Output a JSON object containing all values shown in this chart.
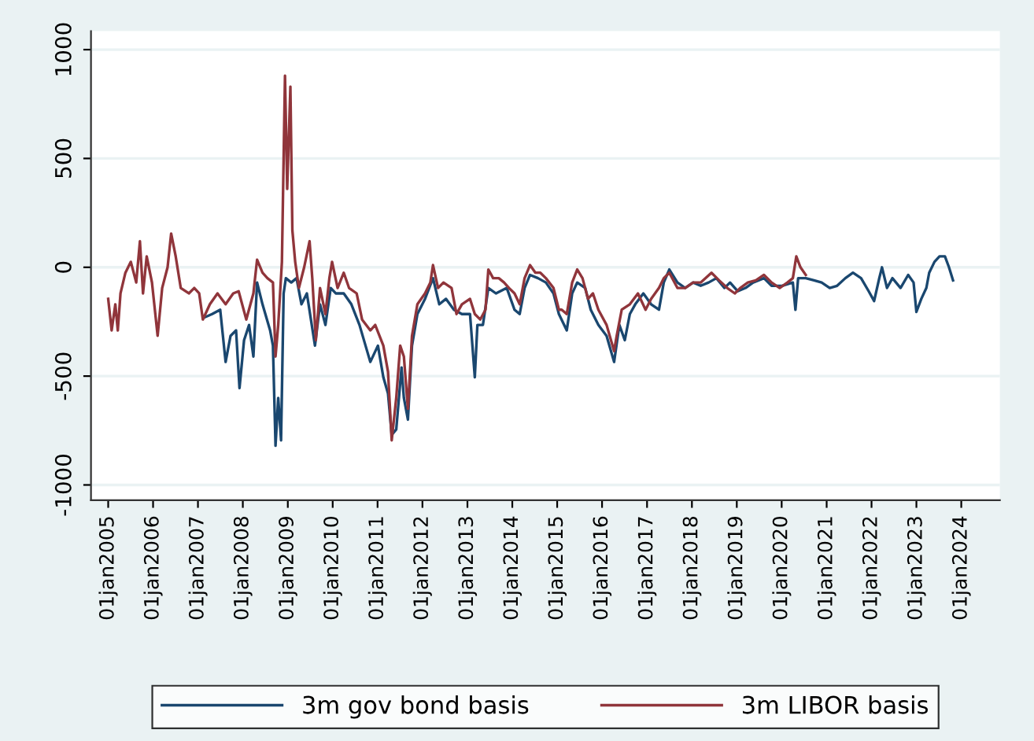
{
  "chart_data": {
    "type": "line",
    "xlim": [
      "2004-08-14",
      "2024-11-10"
    ],
    "ylim": [
      -1070,
      1085
    ],
    "xticks": [
      {
        "value": "2005-01-01",
        "label": "01jan2005"
      },
      {
        "value": "2006-01-01",
        "label": "01jan2006"
      },
      {
        "value": "2007-01-01",
        "label": "01jan2007"
      },
      {
        "value": "2008-01-01",
        "label": "01jan2008"
      },
      {
        "value": "2009-01-01",
        "label": "01jan2009"
      },
      {
        "value": "2010-01-01",
        "label": "01jan2010"
      },
      {
        "value": "2011-01-01",
        "label": "01jan2011"
      },
      {
        "value": "2012-01-01",
        "label": "01jan2012"
      },
      {
        "value": "2013-01-01",
        "label": "01jan2013"
      },
      {
        "value": "2014-01-01",
        "label": "01jan2014"
      },
      {
        "value": "2015-01-01",
        "label": "01jan2015"
      },
      {
        "value": "2016-01-01",
        "label": "01jan2016"
      },
      {
        "value": "2017-01-01",
        "label": "01jan2017"
      },
      {
        "value": "2018-01-01",
        "label": "01jan2018"
      },
      {
        "value": "2019-01-01",
        "label": "01jan2019"
      },
      {
        "value": "2020-01-01",
        "label": "01jan2020"
      },
      {
        "value": "2021-01-01",
        "label": "01jan2021"
      },
      {
        "value": "2022-01-01",
        "label": "01jan2022"
      },
      {
        "value": "2023-01-01",
        "label": "01jan2023"
      },
      {
        "value": "2024-01-01",
        "label": "01jan2024"
      }
    ],
    "yticks": [
      {
        "value": -1000,
        "label": "-1000"
      },
      -500,
      0,
      500,
      1000
    ],
    "grid": "y",
    "legend": "bottom",
    "line_style": "solid",
    "marker": "none",
    "series": [
      {
        "name": "3m gov bond basis",
        "color": "#1a476f",
        "x": [
          "2007-02-25",
          "2007-04-26",
          "2007-07-01",
          "2007-08-14",
          "2007-09-23",
          "2007-11-07",
          "2007-12-05",
          "2008-01-11",
          "2008-02-21",
          "2008-03-27",
          "2008-04-26",
          "2008-06-09",
          "2008-08-10",
          "2008-09-02",
          "2008-09-23",
          "2008-10-15",
          "2008-11-07",
          "2008-11-28",
          "2008-12-16",
          "2009-01-29",
          "2009-03-13",
          "2009-04-22",
          "2009-06-05",
          "2009-08-10",
          "2009-09-20",
          "2009-11-03",
          "2009-12-16",
          "2010-01-26",
          "2010-04-01",
          "2010-06-02",
          "2010-08-07",
          "2010-11-03",
          "2011-01-04",
          "2011-02-17",
          "2011-03-27",
          "2011-04-26",
          "2011-06-02",
          "2011-07-15",
          "2011-08-03",
          "2011-09-05",
          "2011-10-08",
          "2011-11-21",
          "2012-01-22",
          "2012-03-27",
          "2012-05-17",
          "2012-07-11",
          "2012-09-13",
          "2012-11-17",
          "2013-01-22",
          "2013-03-02",
          "2013-03-23",
          "2013-05-07",
          "2013-06-20",
          "2013-08-21",
          "2013-11-17",
          "2014-01-19",
          "2014-03-02",
          "2014-04-11",
          "2014-05-25",
          "2014-07-29",
          "2014-10-01",
          "2014-12-02",
          "2015-01-15",
          "2015-03-20",
          "2015-05-03",
          "2015-06-13",
          "2015-08-17",
          "2015-10-01",
          "2015-12-02",
          "2016-02-07",
          "2016-04-08",
          "2016-05-21",
          "2016-07-04",
          "2016-08-14",
          "2016-09-27",
          "2016-12-02",
          "2017-02-03",
          "2017-04-08",
          "2017-05-17",
          "2017-07-01",
          "2017-09-05",
          "2017-11-07",
          "2018-01-11",
          "2018-03-13",
          "2018-05-17",
          "2018-07-19",
          "2018-09-23",
          "2018-11-07",
          "2019-01-08",
          "2019-03-13",
          "2019-05-14",
          "2019-08-10",
          "2019-10-11",
          "2020-01-04",
          "2020-04-01",
          "2020-04-22",
          "2020-05-14",
          "2020-07-15",
          "2020-09-20",
          "2020-11-21",
          "2021-01-26",
          "2021-03-27",
          "2021-06-02",
          "2021-08-03",
          "2021-10-08",
          "2021-12-09",
          "2022-01-22",
          "2022-03-05",
          "2022-03-27",
          "2022-05-07",
          "2022-06-20",
          "2022-08-25",
          "2022-10-26",
          "2022-12-09",
          "2023-01-01",
          "2023-02-10",
          "2023-03-23",
          "2023-04-15",
          "2023-05-28",
          "2023-07-08",
          "2023-08-21",
          "2023-09-23",
          "2023-10-26"
        ],
        "values": [
          -230,
          -215,
          -195,
          -435,
          -315,
          -290,
          -555,
          -335,
          -265,
          -410,
          -70,
          -170,
          -290,
          -360,
          -820,
          -600,
          -795,
          -120,
          -50,
          -70,
          -50,
          -170,
          -120,
          -360,
          -170,
          -265,
          -95,
          -120,
          -120,
          -170,
          -265,
          -435,
          -360,
          -505,
          -580,
          -770,
          -745,
          -460,
          -600,
          -700,
          -360,
          -215,
          -145,
          -50,
          -170,
          -145,
          -195,
          -215,
          -215,
          -505,
          -265,
          -265,
          -95,
          -120,
          -95,
          -195,
          -215,
          -95,
          -35,
          -50,
          -70,
          -120,
          -215,
          -290,
          -120,
          -70,
          -95,
          -195,
          -265,
          -315,
          -435,
          -265,
          -335,
          -215,
          -170,
          -120,
          -170,
          -195,
          -70,
          -10,
          -70,
          -95,
          -70,
          -85,
          -70,
          -50,
          -95,
          -70,
          -110,
          -95,
          -70,
          -50,
          -85,
          -85,
          -70,
          -195,
          -50,
          -50,
          -60,
          -70,
          -95,
          -85,
          -50,
          -25,
          -50,
          -110,
          -155,
          -50,
          0,
          -95,
          -50,
          -95,
          -35,
          -70,
          -205,
          -145,
          -95,
          -25,
          25,
          50,
          50,
          0,
          -60
        ]
      },
      {
        "name": "3m LIBOR basis",
        "color": "#90353b",
        "x": [
          "2005-01-01",
          "2005-01-29",
          "2005-02-28",
          "2005-03-20",
          "2005-04-11",
          "2005-05-21",
          "2005-07-04",
          "2005-08-17",
          "2005-09-16",
          "2005-10-11",
          "2005-11-10",
          "2005-12-23",
          "2006-02-07",
          "2006-03-16",
          "2006-04-29",
          "2006-05-28",
          "2006-07-04",
          "2006-08-14",
          "2006-10-19",
          "2006-12-02",
          "2007-01-11",
          "2007-02-10",
          "2007-04-08",
          "2007-06-09",
          "2007-08-14",
          "2007-10-15",
          "2007-11-28",
          "2008-01-29",
          "2008-03-27",
          "2008-04-26",
          "2008-06-09",
          "2008-07-19",
          "2008-09-02",
          "2008-09-23",
          "2008-10-15",
          "2008-11-14",
          "2008-12-09",
          "2008-12-27",
          "2009-01-22",
          "2009-02-07",
          "2009-03-02",
          "2009-04-01",
          "2009-05-14",
          "2009-06-27",
          "2009-07-19",
          "2009-08-17",
          "2009-09-20",
          "2009-11-03",
          "2009-12-05",
          "2009-12-27",
          "2010-02-10",
          "2010-04-01",
          "2010-05-14",
          "2010-07-15",
          "2010-08-28",
          "2010-11-03",
          "2010-12-13",
          "2011-02-17",
          "2011-03-27",
          "2011-04-26",
          "2011-06-02",
          "2011-07-04",
          "2011-08-03",
          "2011-09-05",
          "2011-10-08",
          "2011-11-21",
          "2012-01-22",
          "2012-03-05",
          "2012-03-27",
          "2012-05-07",
          "2012-06-20",
          "2012-08-25",
          "2012-10-04",
          "2012-11-17",
          "2013-01-22",
          "2013-03-02",
          "2013-04-15",
          "2013-05-28",
          "2013-06-20",
          "2013-07-29",
          "2013-09-13",
          "2013-10-26",
          "2013-12-05",
          "2014-01-19",
          "2014-03-02",
          "2014-04-11",
          "2014-05-25",
          "2014-07-08",
          "2014-08-17",
          "2014-10-01",
          "2014-12-02",
          "2015-01-15",
          "2015-02-07",
          "2015-03-20",
          "2015-05-03",
          "2015-06-13",
          "2015-07-26",
          "2015-09-09",
          "2015-10-19",
          "2015-12-02",
          "2016-02-07",
          "2016-04-08",
          "2016-04-29",
          "2016-06-09",
          "2016-08-14",
          "2016-10-19",
          "2016-12-20",
          "2017-02-03",
          "2017-04-08",
          "2017-05-17",
          "2017-07-01",
          "2017-09-05",
          "2017-11-07",
          "2018-01-11",
          "2018-03-13",
          "2018-06-09",
          "2018-08-10",
          "2018-10-15",
          "2018-12-16",
          "2019-01-29",
          "2019-04-01",
          "2019-06-05",
          "2019-08-10",
          "2019-10-11",
          "2019-12-16",
          "2020-02-17",
          "2020-04-01",
          "2020-04-29",
          "2020-06-02",
          "2020-07-15"
        ],
        "values": [
          -145,
          -290,
          -170,
          -290,
          -120,
          -25,
          25,
          -70,
          120,
          -120,
          50,
          -70,
          -315,
          -95,
          0,
          155,
          50,
          -95,
          -120,
          -95,
          -120,
          -240,
          -170,
          -120,
          -170,
          -120,
          -110,
          -240,
          -120,
          35,
          -25,
          -50,
          -70,
          -410,
          -265,
          25,
          880,
          360,
          830,
          170,
          25,
          -95,
          0,
          120,
          -50,
          -335,
          -95,
          -215,
          -50,
          25,
          -95,
          -25,
          -95,
          -120,
          -240,
          -290,
          -265,
          -360,
          -480,
          -795,
          -600,
          -360,
          -410,
          -650,
          -315,
          -170,
          -120,
          -70,
          10,
          -95,
          -70,
          -95,
          -215,
          -170,
          -145,
          -215,
          -240,
          -195,
          -10,
          -50,
          -50,
          -70,
          -95,
          -120,
          -170,
          -50,
          10,
          -25,
          -25,
          -50,
          -95,
          -195,
          -195,
          -215,
          -70,
          -10,
          -50,
          -145,
          -120,
          -195,
          -265,
          -385,
          -315,
          -195,
          -170,
          -120,
          -195,
          -145,
          -95,
          -50,
          -25,
          -95,
          -95,
          -70,
          -70,
          -25,
          -60,
          -95,
          -120,
          -95,
          -70,
          -60,
          -35,
          -70,
          -95,
          -70,
          -50,
          50,
          0,
          -35
        ]
      }
    ]
  }
}
